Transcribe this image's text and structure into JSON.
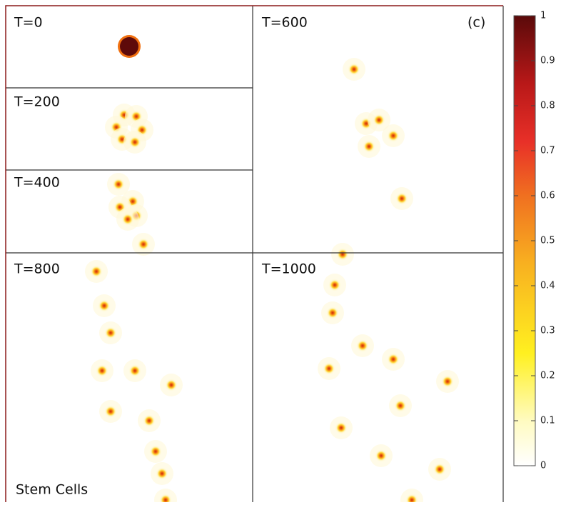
{
  "panels": [
    {
      "label": "T=0"
    },
    {
      "label": "T=200"
    },
    {
      "label": "T=400"
    },
    {
      "label": "T=600"
    },
    {
      "label": "T=800"
    },
    {
      "label": "T=1000"
    }
  ],
  "panel_tag": "(c)",
  "caption": "Stem Cells",
  "colorbar": {
    "lim": [
      0,
      1
    ],
    "ticks": [
      0,
      0.1,
      0.2,
      0.3,
      0.4,
      0.5,
      0.6,
      0.7,
      0.8,
      0.9,
      1
    ]
  }
}
